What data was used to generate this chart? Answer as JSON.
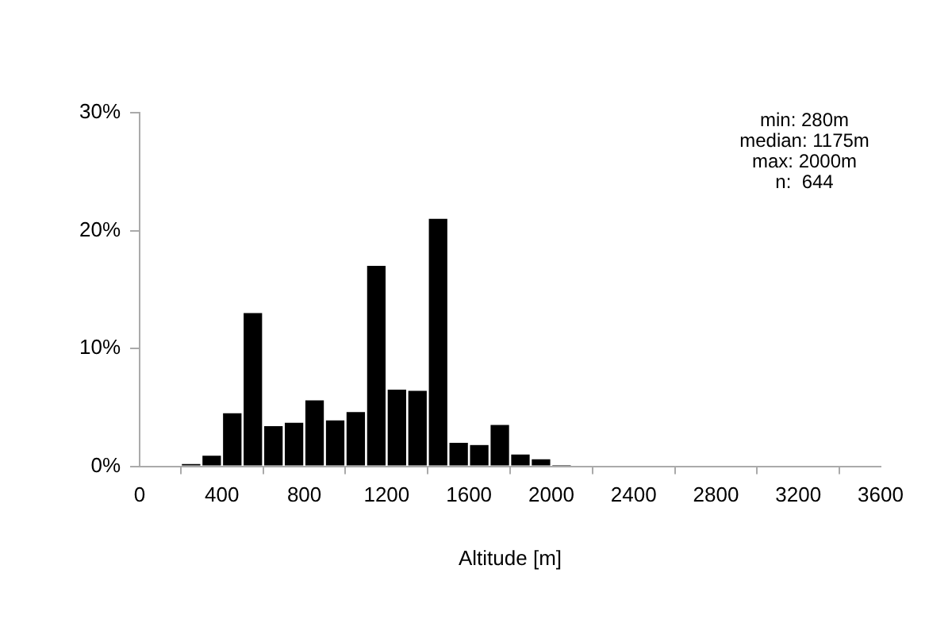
{
  "chart_data": {
    "type": "histogram",
    "xlabel": "Altitude [m]",
    "bins": [
      200,
      300,
      400,
      500,
      600,
      700,
      800,
      900,
      1000,
      1100,
      1200,
      1300,
      1400,
      1500,
      1600,
      1700,
      1800,
      1900,
      2000,
      2100
    ],
    "values": [
      0.2,
      0.9,
      4.5,
      13.0,
      3.4,
      3.7,
      5.6,
      3.9,
      4.6,
      17.0,
      6.5,
      6.4,
      21.0,
      2.0,
      1.8,
      3.5,
      1.0,
      0.6,
      0.1
    ],
    "color": "#000000",
    "xlim": [
      0,
      3600
    ],
    "xticks": [
      0,
      400,
      800,
      1200,
      1600,
      2000,
      2400,
      2800,
      3200,
      3600
    ],
    "ylim": [
      0,
      30
    ],
    "yticks": [
      {
        "value": 0,
        "label": "0%"
      },
      {
        "value": 10,
        "label": "10%"
      },
      {
        "value": 20,
        "label": "20%"
      },
      {
        "value": 30,
        "label": "30%"
      }
    ],
    "annotations": [
      "min: 280m",
      "median: 1175m",
      "max: 2000m",
      "n:  644"
    ],
    "grid": false,
    "legend": false
  }
}
